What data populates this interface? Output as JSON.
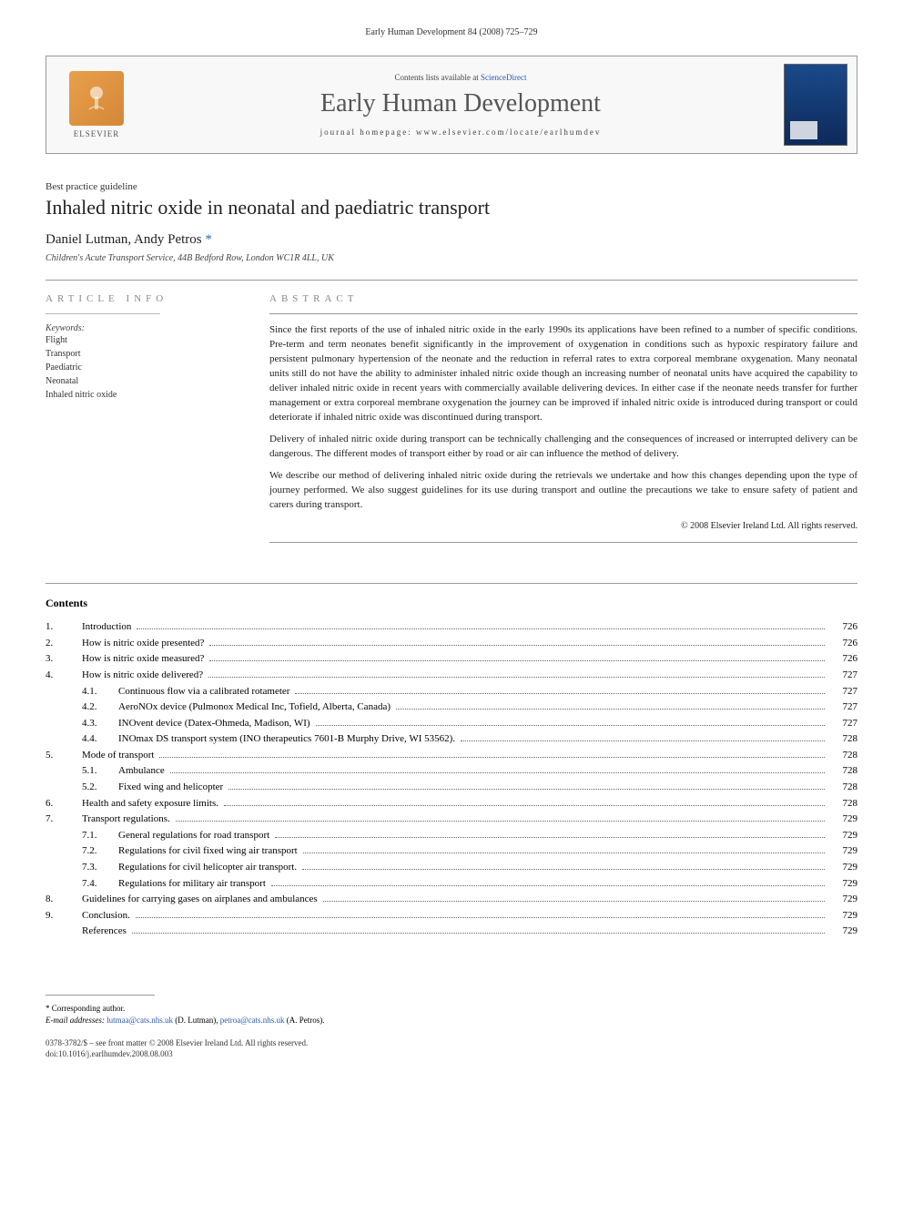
{
  "running_header": "Early Human Development 84 (2008) 725–729",
  "masthead": {
    "publisher": "ELSEVIER",
    "contents_prefix": "Contents lists available at ",
    "contents_link": "ScienceDirect",
    "journal": "Early Human Development",
    "homepage_label": "journal homepage: ",
    "homepage_url": "www.elsevier.com/locate/earlhumdev"
  },
  "article": {
    "type": "Best practice guideline",
    "title": "Inhaled nitric oxide in neonatal and paediatric transport",
    "authors_html": "Daniel Lutman, Andy Petros",
    "corresponding_mark": " *",
    "affiliation": "Children's Acute Transport Service, 44B Bedford Row, London WC1R 4LL, UK"
  },
  "headings": {
    "article_info": "ARTICLE INFO",
    "abstract": "ABSTRACT",
    "contents": "Contents"
  },
  "keywords": {
    "label": "Keywords:",
    "items": [
      "Flight",
      "Transport",
      "Paediatric",
      "Neonatal",
      "Inhaled nitric oxide"
    ]
  },
  "abstract": {
    "p1": "Since the first reports of the use of inhaled nitric oxide in the early 1990s its applications have been refined to a number of specific conditions. Pre-term and term neonates benefit significantly in the improvement of oxygenation in conditions such as hypoxic respiratory failure and persistent pulmonary hypertension of the neonate and the reduction in referral rates to extra corporeal membrane oxygenation. Many neonatal units still do not have the ability to administer inhaled nitric oxide though an increasing number of neonatal units have acquired the capability to deliver inhaled nitric oxide in recent years with commercially available delivering devices. In either case if the neonate needs transfer for further management or extra corporeal membrane oxygenation the journey can be improved if inhaled nitric oxide is introduced during transport or could deteriorate if inhaled nitric oxide was discontinued during transport.",
    "p2": "Delivery of inhaled nitric oxide during transport can be technically challenging and the consequences of increased or interrupted delivery can be dangerous. The different modes of transport either by road or air can influence the method of delivery.",
    "p3": "We describe our method of delivering inhaled nitric oxide during the retrievals we undertake and how this changes depending upon the type of journey performed. We also suggest guidelines for its use during transport and outline the precautions we take to ensure safety of patient and carers during transport.",
    "copyright": "© 2008 Elsevier Ireland Ltd. All rights reserved."
  },
  "toc": [
    {
      "num": "1.",
      "title": "Introduction",
      "page": "726"
    },
    {
      "num": "2.",
      "title": "How is nitric oxide presented?",
      "page": "726"
    },
    {
      "num": "3.",
      "title": "How is nitric oxide measured?",
      "page": "726"
    },
    {
      "num": "4.",
      "title": "How is nitric oxide delivered?",
      "page": "727"
    },
    {
      "num": "4.1.",
      "title": "Continuous flow via a calibrated rotameter",
      "page": "727",
      "sub": true
    },
    {
      "num": "4.2.",
      "title": "AeroNOx device (Pulmonox Medical Inc, Tofield, Alberta, Canada)",
      "page": "727",
      "sub": true
    },
    {
      "num": "4.3.",
      "title": "INOvent device (Datex-Ohmeda, Madison, WI)",
      "page": "727",
      "sub": true
    },
    {
      "num": "4.4.",
      "title": "INOmax DS transport system (INO therapeutics 7601-B Murphy Drive, WI 53562).",
      "page": "728",
      "sub": true
    },
    {
      "num": "5.",
      "title": "Mode of transport",
      "page": "728"
    },
    {
      "num": "5.1.",
      "title": "Ambulance",
      "page": "728",
      "sub": true
    },
    {
      "num": "5.2.",
      "title": "Fixed wing and helicopter",
      "page": "728",
      "sub": true
    },
    {
      "num": "6.",
      "title": "Health and safety exposure limits.",
      "page": "728"
    },
    {
      "num": "7.",
      "title": "Transport regulations.",
      "page": "729"
    },
    {
      "num": "7.1.",
      "title": "General regulations for road transport",
      "page": "729",
      "sub": true
    },
    {
      "num": "7.2.",
      "title": "Regulations for civil fixed wing air transport",
      "page": "729",
      "sub": true
    },
    {
      "num": "7.3.",
      "title": "Regulations for civil helicopter air transport.",
      "page": "729",
      "sub": true
    },
    {
      "num": "7.4.",
      "title": "Regulations for military air transport",
      "page": "729",
      "sub": true
    },
    {
      "num": "8.",
      "title": "Guidelines for carrying gases on airplanes and ambulances",
      "page": "729"
    },
    {
      "num": "9.",
      "title": "Conclusion.",
      "page": "729"
    },
    {
      "num": "",
      "title": "References",
      "page": "729"
    }
  ],
  "footnote": {
    "corr": "* Corresponding author.",
    "email_label": "E-mail addresses: ",
    "email1": "lutmaa@cats.nhs.uk",
    "email1_who": " (D. Lutman), ",
    "email2": "petroa@cats.nhs.uk",
    "email2_who": " (A. Petros)."
  },
  "issn": {
    "line1": "0378-3782/$ – see front matter © 2008 Elsevier Ireland Ltd. All rights reserved.",
    "line2": "doi:10.1016/j.earlhumdev.2008.08.003"
  }
}
